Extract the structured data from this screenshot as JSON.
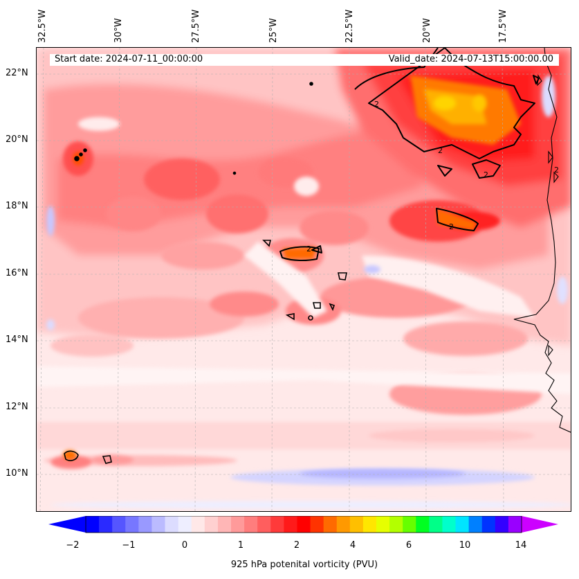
{
  "map": {
    "start_date": "Start date: 2024-07-11_00:00:00",
    "valid_date": "Valid_date: 2024-07-13T15:00:00.00",
    "lon_labels": [
      "32.5°W",
      "30°W",
      "27.5°W",
      "25°W",
      "22.5°W",
      "20°W",
      "17.5°W"
    ],
    "lat_labels": [
      "22°N",
      "20°N",
      "18°N",
      "16°N",
      "14°N",
      "12°N",
      "10°N"
    ],
    "contour_label": "2"
  },
  "colorbar": {
    "title": "925 hPa potenital vorticity (PVU)",
    "tick_labels": [
      "−2",
      "−1",
      "0",
      "1",
      "2",
      "4",
      "6",
      "10",
      "14"
    ],
    "colors": [
      "#0000ff",
      "#2a2aff",
      "#5555ff",
      "#7777ff",
      "#9999ff",
      "#bbbbff",
      "#dcdcff",
      "#eeeeff",
      "#ffe8e8",
      "#ffd0d0",
      "#ffb6b6",
      "#ff9a9a",
      "#ff7d7d",
      "#ff5e5e",
      "#ff3a3a",
      "#ff1a1a",
      "#ff0000",
      "#ff3300",
      "#ff6a00",
      "#ff9900",
      "#ffbf00",
      "#ffe600",
      "#e6ff00",
      "#b3ff00",
      "#66ff00",
      "#00ff22",
      "#00ff88",
      "#00ffcc",
      "#00e5ff",
      "#0080ff",
      "#0033ff",
      "#3300ff",
      "#9900ff"
    ],
    "low_extend_color": "#0000ff",
    "high_extend_color": "#cc00ff"
  }
}
